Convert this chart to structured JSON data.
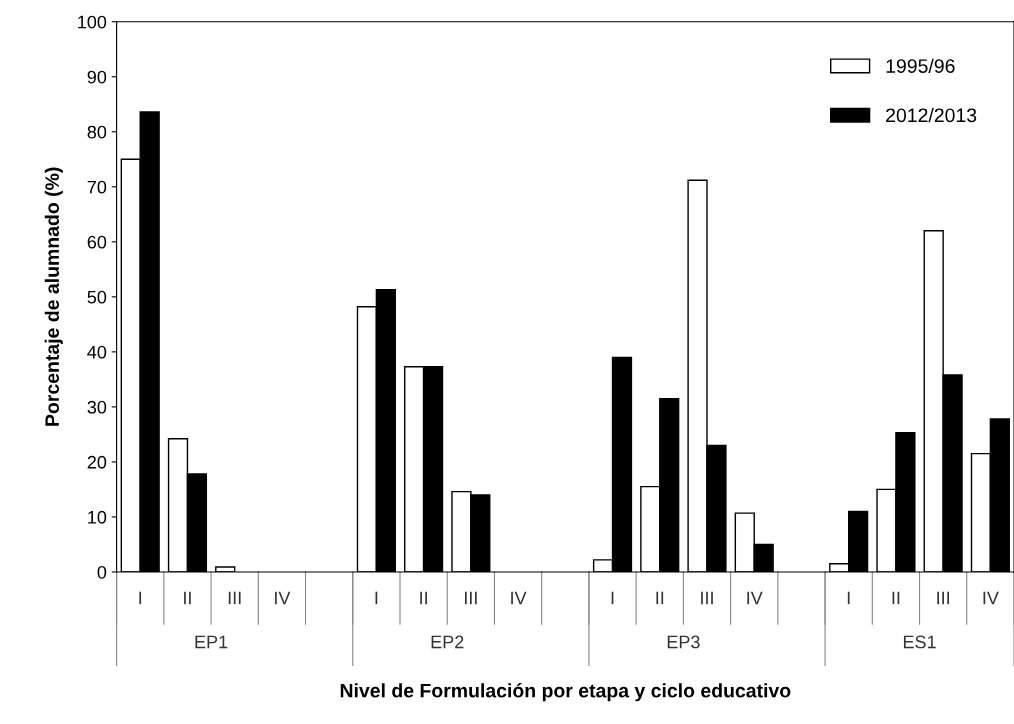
{
  "chart_data": {
    "type": "bar",
    "xlabel": "Nivel de Formulación por etapa y ciclo educativo",
    "ylabel": "Porcentaje de alumnado (%)",
    "categories": [
      "I",
      "II",
      "III",
      "IV",
      null,
      "I",
      "II",
      "III",
      "IV",
      null,
      "I",
      "II",
      "III",
      "IV",
      null,
      "I",
      "II",
      "III",
      "IV"
    ],
    "series": [
      {
        "name": "1995/96",
        "color": "#ffffff",
        "values": [
          75,
          24.2,
          0.9,
          null,
          null,
          48.2,
          37.3,
          14.6,
          null,
          null,
          2.2,
          15.5,
          71.2,
          10.7,
          null,
          1.5,
          15,
          62,
          21.5
        ]
      },
      {
        "name": "2012/2013",
        "color": "#000000",
        "values": [
          83.6,
          17.8,
          null,
          null,
          null,
          51.3,
          37.3,
          14,
          null,
          null,
          39,
          31.5,
          23,
          5,
          null,
          11,
          25.3,
          35.8,
          27.8
        ]
      }
    ],
    "annotations": [
      "EP1",
      "EP2",
      "EP3",
      "ES1"
    ],
    "ylim": [
      0,
      100
    ],
    "yticks": [
      0,
      10,
      20,
      30,
      40,
      50,
      60,
      70,
      80,
      90,
      100
    ],
    "grid": false,
    "legend": "top right"
  }
}
